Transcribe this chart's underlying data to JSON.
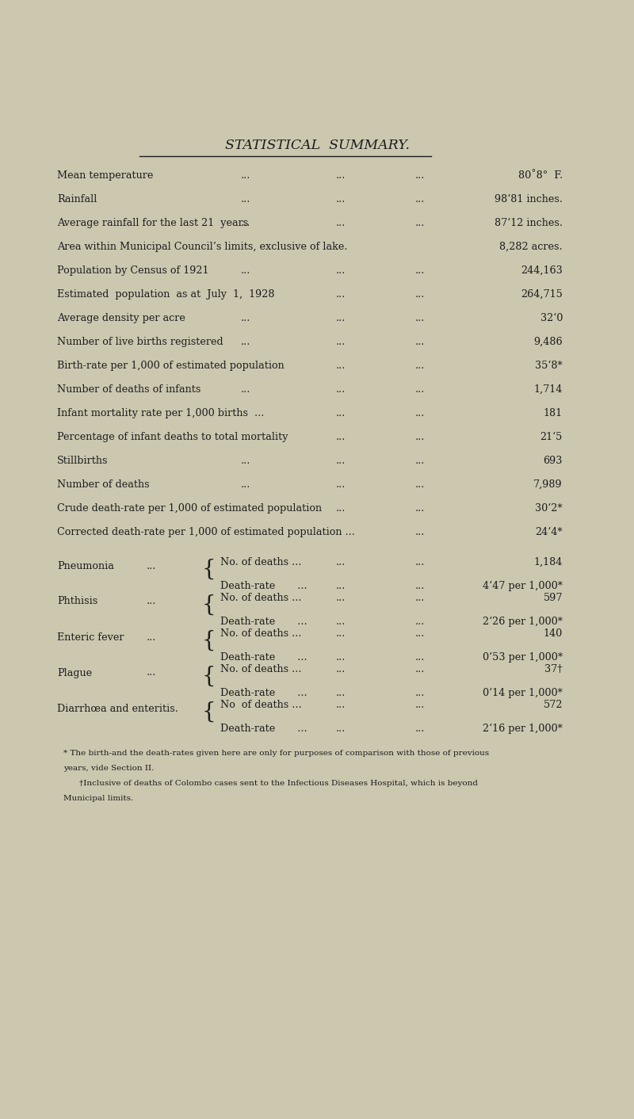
{
  "title": "STATISTICAL  SUMMARY.",
  "bg_color": "#ccc8b0",
  "text_color": "#1c1c1c",
  "title_fontsize": 12.5,
  "body_fontsize": 9.2,
  "footnote_fontsize": 7.5,
  "simple_rows": [
    {
      "label": "Mean temperature",
      "dots_label": "...",
      "dots_mid": "...",
      "dots_right": "...",
      "value": "80˚8°  F."
    },
    {
      "label": "Rainfall",
      "dots_label": "...",
      "dots_mid": "...",
      "dots_right": "...",
      "value": "98‘81 inches."
    },
    {
      "label": "Average rainfall for the last 21  years",
      "dots_label": "...",
      "dots_mid": "...",
      "dots_right": "...",
      "value": "87‘12 inches."
    },
    {
      "label": "Area within Municipal Council’s limits, exclusive of lake.",
      "dots_label": "",
      "dots_mid": "",
      "dots_right": "",
      "value": "8,282 acres."
    },
    {
      "label": "Population by Census of 1921",
      "dots_label": "...",
      "dots_mid": "...",
      "dots_right": "...",
      "value": "244,163"
    },
    {
      "label": "Estimated  population  as at  July  1,  1928",
      "dots_label": "",
      "dots_mid": "...",
      "dots_right": "...",
      "value": "264,715"
    },
    {
      "label": "Average density per acre",
      "dots_label": "...",
      "dots_mid": "...",
      "dots_right": "...",
      "value": "32‘0"
    },
    {
      "label": "Number of live births registered",
      "dots_label": "...",
      "dots_mid": "...",
      "dots_right": "...",
      "value": "9,486"
    },
    {
      "label": "Birth-rate per 1,000 of estimated population",
      "dots_label": "",
      "dots_mid": "...",
      "dots_right": "...",
      "value": "35‘8*"
    },
    {
      "label": "Number of deaths of infants",
      "dots_label": "...",
      "dots_mid": "...",
      "dots_right": "...",
      "value": "1,714"
    },
    {
      "label": "Infant mortality rate per 1,000 births  ...",
      "dots_label": "",
      "dots_mid": "...",
      "dots_right": "...",
      "value": "181"
    },
    {
      "label": "Percentage of infant deaths to total mortality",
      "dots_label": "",
      "dots_mid": "...",
      "dots_right": "...",
      "value": "21‘5"
    },
    {
      "label": "Stillbirths",
      "dots_label": "...",
      "dots_mid": "...",
      "dots_right": "...",
      "value": "693"
    },
    {
      "label": "Number of deaths",
      "dots_label": "...",
      "dots_mid": "...",
      "dots_right": "...",
      "value": "7,989"
    },
    {
      "label": "Crude death-rate per 1,000 of estimated population",
      "dots_label": "",
      "dots_mid": "...",
      "dots_right": "...",
      "value": "30‘2*"
    },
    {
      "label": "Corrected death-rate per 1,000 of estimated population ...",
      "dots_label": "",
      "dots_mid": "",
      "dots_right": "...",
      "value": "24‘4*"
    }
  ],
  "grouped_rows": [
    {
      "label": "Pneumonia",
      "dots": "...",
      "sub": [
        {
          "sub_label": "No. of deaths ...",
          "dots_mid": "...",
          "sub_value": "1,184"
        },
        {
          "sub_label": "Death-rate       ...",
          "dots_mid": "...",
          "sub_value": "4‘47 per 1,000*"
        }
      ]
    },
    {
      "label": "Phthisis",
      "dots": "...",
      "sub": [
        {
          "sub_label": "No. of deaths ...",
          "dots_mid": "...",
          "sub_value": "597"
        },
        {
          "sub_label": "Death-rate       ...",
          "dots_mid": "...",
          "sub_value": "2‘26 per 1,000*"
        }
      ]
    },
    {
      "label": "Enteric fever",
      "dots": "...",
      "sub": [
        {
          "sub_label": "No. of deaths ...",
          "dots_mid": "...",
          "sub_value": "140"
        },
        {
          "sub_label": "Death-rate       ...",
          "dots_mid": "...",
          "sub_value": "0‘53 per 1,000*"
        }
      ]
    },
    {
      "label": "Plague",
      "dots": "...",
      "sub": [
        {
          "sub_label": "No. of deaths ...",
          "dots_mid": "...",
          "sub_value": "37†"
        },
        {
          "sub_label": "Death-rate       ...",
          "dots_mid": "...",
          "sub_value": "0‘14 per 1,000*"
        }
      ]
    },
    {
      "label": "Diarrhœa and enteritis.",
      "dots": "",
      "sub": [
        {
          "sub_label": "No  of deaths ...",
          "dots_mid": "...",
          "sub_value": "572"
        },
        {
          "sub_label": "Death-rate       ...",
          "dots_mid": "...",
          "sub_value": "2‘16 per 1,000*"
        }
      ]
    }
  ],
  "footnote_lines": [
    "* The birth-and the death-rates given here are only for purposes of comparison with those of previous",
    "years, vide Section II.",
    "†Inclusive of deaths of Colombo cases sent to the Infectious Diseases Hospital, which is beyond",
    "Municipal limits."
  ]
}
